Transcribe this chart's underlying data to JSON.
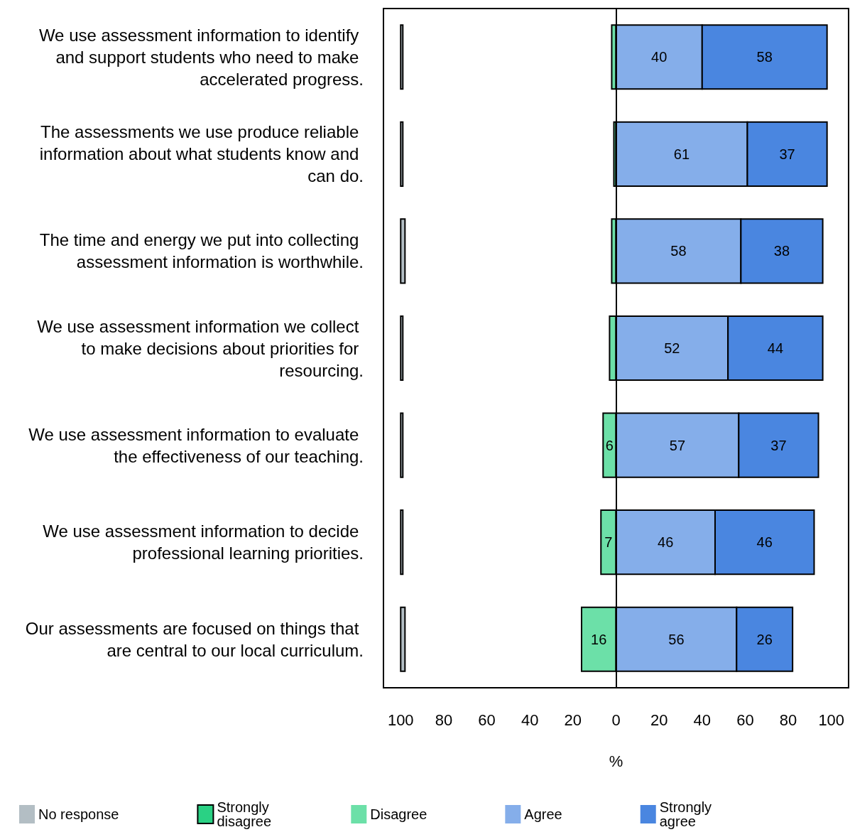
{
  "chart_data": {
    "type": "bar",
    "orientation": "horizontal",
    "categories": [
      "We use assessment information to identify and support students who need to make accelerated progress.",
      "The assessments we use produce reliable information about what students know and can do.",
      "The time and energy we put into collecting assessment information is worthwhile.",
      "We use assessment information we collect to make decisions about priorities for resourcing.",
      "We use assessment information to evaluate the effectiveness of our teaching.",
      "We use assessment information to decide professional learning priorities.",
      "Our assessments are focused on things that are central to our local curriculum."
    ],
    "series": [
      {
        "name": "No response",
        "color": "#b3bec4",
        "base": [
          -100,
          -100,
          -100,
          -100,
          -100,
          -100,
          -100
        ],
        "values": [
          1,
          1,
          2,
          1,
          1,
          1,
          2
        ]
      },
      {
        "name": "Strongly disagree",
        "color": "#2ad184",
        "values": [
          null,
          null,
          null,
          null,
          null,
          null,
          null
        ]
      },
      {
        "name": "Disagree",
        "color": "#6ce0a8",
        "base": [
          -2,
          -1,
          -2,
          -3,
          -6,
          -7,
          -16
        ],
        "values": [
          2,
          1,
          2,
          3,
          6,
          7,
          16
        ],
        "value_labels": [
          null,
          null,
          null,
          null,
          "6",
          "7",
          "16"
        ]
      },
      {
        "name": "Agree",
        "color": "#85aeea",
        "base": [
          0,
          0,
          0,
          0,
          0,
          0,
          0
        ],
        "values": [
          40,
          61,
          58,
          52,
          57,
          46,
          56
        ],
        "value_labels": [
          "40",
          "61",
          "58",
          "52",
          "57",
          "46",
          "56"
        ]
      },
      {
        "name": "Strongly agree",
        "color": "#4a86e0",
        "base": [
          40,
          61,
          58,
          52,
          57,
          46,
          56
        ],
        "values": [
          58,
          37,
          38,
          44,
          37,
          46,
          26
        ],
        "value_labels": [
          "58",
          "37",
          "38",
          "44",
          "37",
          "46",
          "26"
        ]
      }
    ],
    "xlabel": "%",
    "xlim": [
      -108,
      108
    ],
    "xticks": [
      {
        "value": -100,
        "label": "100"
      },
      {
        "value": -80,
        "label": "80"
      },
      {
        "value": -60,
        "label": "60"
      },
      {
        "value": -40,
        "label": "40"
      },
      {
        "value": -20,
        "label": "20"
      },
      0,
      20,
      40,
      60,
      80,
      100
    ],
    "ref_lines": [
      {
        "axis": "x",
        "value": 0,
        "label": null,
        "color": "#000000"
      }
    ],
    "grid": false,
    "legend": "bottom"
  }
}
